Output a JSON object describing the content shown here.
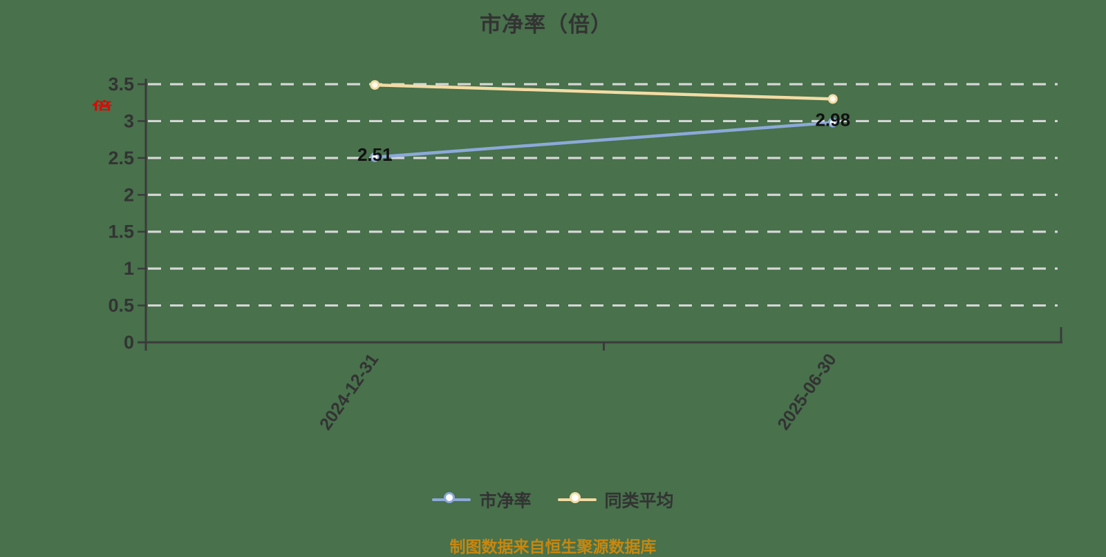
{
  "title": "市净率（倍）",
  "chart_data": {
    "type": "line",
    "title": "市净率（倍）",
    "categories": [
      "2024-12-31",
      "2025-06-30"
    ],
    "series": [
      {
        "name": "市净率",
        "values": [
          2.51,
          2.98
        ],
        "point_labels": [
          "2.51",
          "2.98"
        ],
        "color": "#8ca9d9",
        "marker_fill": "#ffffff"
      },
      {
        "name": "同类平均",
        "values": [
          3.49,
          3.3
        ],
        "point_labels": [
          "",
          ""
        ],
        "color": "#f3dba4",
        "marker_fill": "#fffaef"
      }
    ],
    "ylim": [
      0,
      3.5
    ],
    "yticks": [
      0,
      0.5,
      1,
      1.5,
      2,
      2.5,
      3,
      3.5
    ],
    "ytick_labels": [
      "0",
      "0.5",
      "1",
      "1.5",
      "2",
      "2.5",
      "3",
      "3.5"
    ],
    "y_unit": "倍",
    "grid": "horizontal-dashed",
    "legend_position": "bottom"
  },
  "y_axis": {
    "unit_label": "倍"
  },
  "x_axis": {
    "labels": [
      "2024-12-31",
      "2025-06-30"
    ]
  },
  "legend": {
    "items": [
      {
        "label": "市净率",
        "color": "#8ca9d9"
      },
      {
        "label": "同类平均",
        "color": "#f3dba4"
      }
    ]
  },
  "footer": {
    "source_text": "制图数据来自恒生聚源数据库"
  },
  "colors": {
    "background": "#48714c",
    "grid": "#d6d6d6",
    "axis": "#3a3a3a",
    "text": "#333333",
    "unit_label": "#e60000",
    "source": "#c8870e",
    "data_label": "#111111"
  }
}
